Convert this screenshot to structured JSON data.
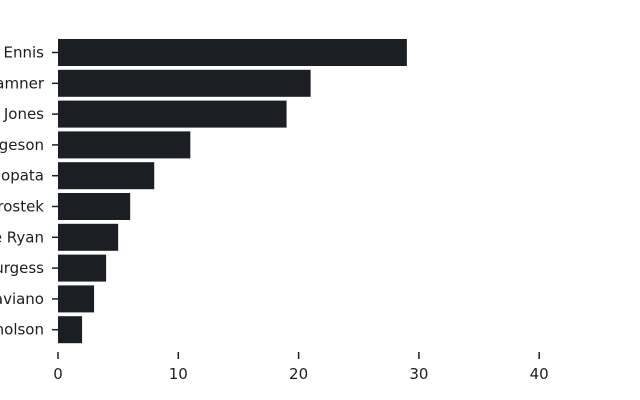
{
  "chart_data": {
    "type": "bar",
    "orientation": "horizontal",
    "title": "",
    "xlabel": "",
    "ylabel": "",
    "categories": [
      "Ennis",
      "amner",
      "Jones",
      "geson",
      "opata",
      "rostek",
      "e Ryan",
      "urgess",
      "aviano",
      "holson"
    ],
    "values": [
      29,
      21,
      19,
      11,
      8,
      6,
      5,
      4,
      3,
      2
    ],
    "xlim": [
      0,
      45
    ],
    "xticks": [
      0,
      10,
      20,
      30,
      40
    ],
    "grid": false,
    "legend": "none",
    "bar_color": "#1b1e23"
  }
}
